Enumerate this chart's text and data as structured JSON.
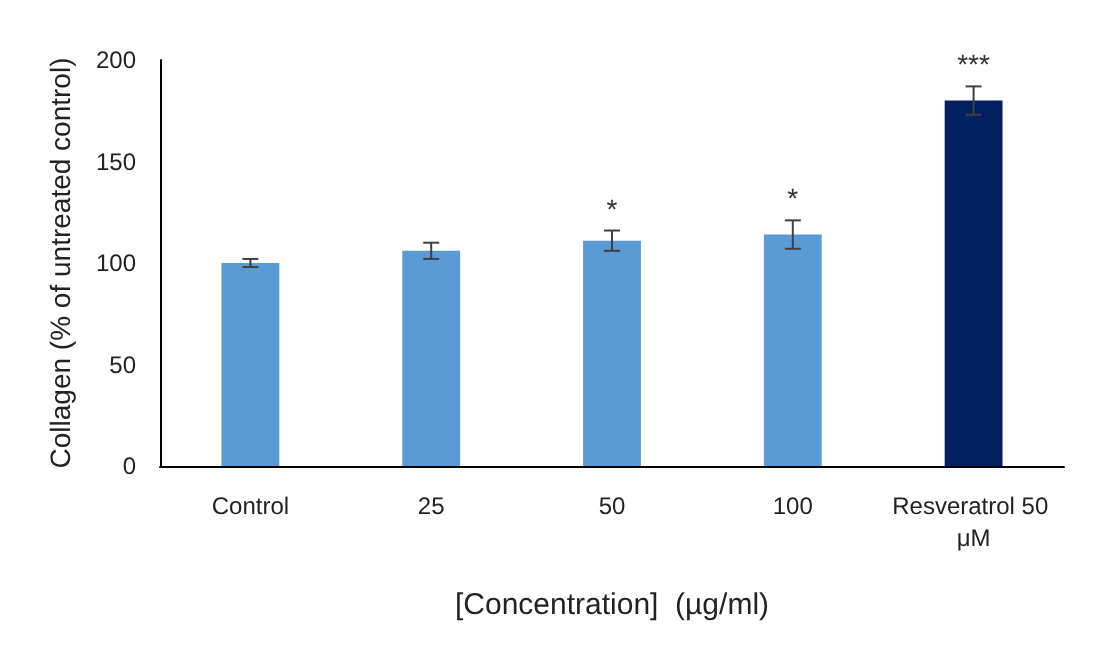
{
  "chart_data": {
    "type": "bar",
    "xlabel": "[Concentration]  (µg/ml)",
    "ylabel": "Collagen (% of untreated control)",
    "categories": [
      "Control",
      "25",
      "50",
      "100",
      "Resveratrol 50 μM"
    ],
    "values": [
      100,
      106,
      111,
      114,
      180
    ],
    "colors": [
      "#5b9bd5",
      "#5b9bd5",
      "#5b9bd5",
      "#5b9bd5",
      "#002060"
    ],
    "errors": [
      2,
      4,
      5,
      7,
      7
    ],
    "value_labels": [
      null,
      null,
      "*",
      "*",
      "***"
    ],
    "ylim": [
      0,
      200
    ],
    "yticks": [
      0,
      50,
      100,
      150,
      200
    ],
    "grid": false
  }
}
